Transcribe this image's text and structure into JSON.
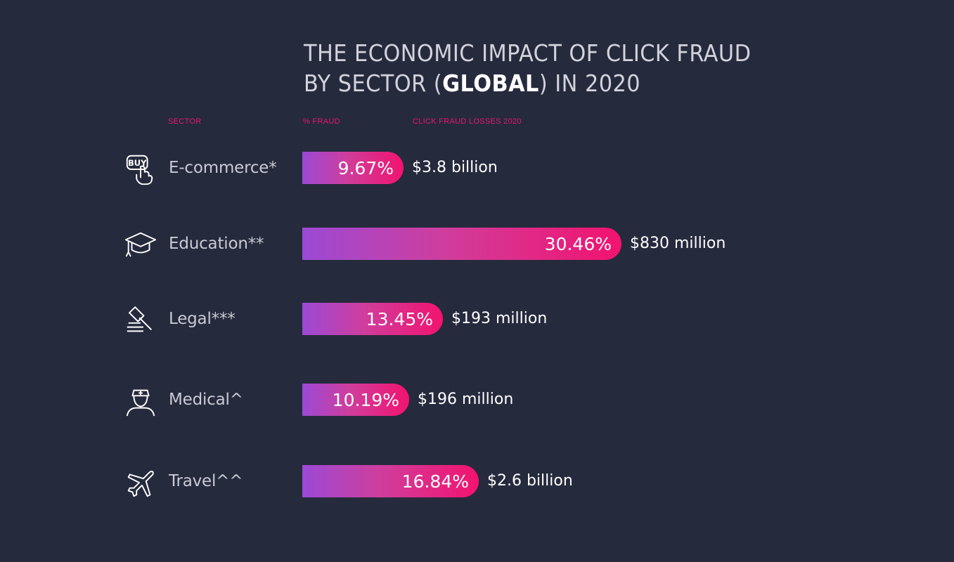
{
  "title": {
    "line1": "THE ECONOMIC IMPACT OF CLICK FRAUD",
    "line2_pre": "BY SECTOR (",
    "line2_highlight": "GLOBAL",
    "line2_post": ") IN 2020"
  },
  "headers": {
    "sector": "SECTOR",
    "pct_fraud": "% FRAUD",
    "losses": "CLICK FRAUD LOSSES 2020"
  },
  "colors": {
    "background": "#262a3d",
    "accent": "#e6176f",
    "bar_start": "#9b4ad6",
    "bar_end": "#f2136f"
  },
  "chart_data": {
    "type": "bar",
    "orientation": "horizontal",
    "title": "THE ECONOMIC IMPACT OF CLICK FRAUD BY SECTOR (GLOBAL) IN 2020",
    "categories": [
      "E-commerce*",
      "Education**",
      "Legal***",
      "Medical^",
      "Travel^^"
    ],
    "values": [
      9.67,
      30.46,
      13.45,
      10.19,
      16.84
    ],
    "value_labels": [
      "9.67%",
      "30.46%",
      "13.45%",
      "10.19%",
      "16.84%"
    ],
    "losses": [
      "$3.8 billion",
      "$830 million",
      "$193 million",
      "$196 million",
      "$2.6 billion"
    ],
    "icons": [
      "buy-icon",
      "graduation-cap-icon",
      "gavel-icon",
      "nurse-icon",
      "airplane-icon"
    ],
    "grid": false
  }
}
